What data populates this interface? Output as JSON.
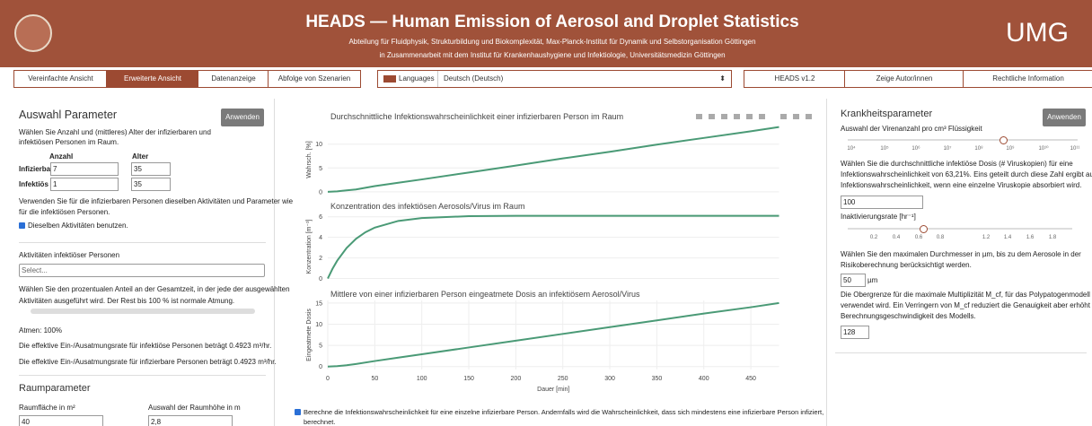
{
  "header": {
    "title": "HEADS — Human Emission of Aerosol and Droplet Statistics",
    "subtitle_1": "Abteilung für Fluidphysik, Strukturbildung und Biokomplexität, Max-Planck-Institut für Dynamik und Selbstorganisation Göttingen",
    "subtitle_2": "in Zusammenarbeit mit dem Institut für Krankenhaushygiene und Infektiologie, Universitätsmedizin Göttingen",
    "logo_text": "UMG"
  },
  "nav": {
    "tabs": [
      "Vereinfachte Ansicht",
      "Erweiterte Ansicht",
      "Datenanzeige",
      "Abfolge von Szenarien"
    ],
    "languages_label": "Languages",
    "language": "Deutsch (Deutsch)",
    "right": [
      "HEADS v1.2",
      "Zeige Autor/innen",
      "Rechtliche Information"
    ]
  },
  "left": {
    "heading": "Auswahl Parameter",
    "apply": "Anwenden",
    "intro": [
      "Wählen Sie Anzahl und (mittleres) Alter der infizierbaren und",
      "infektiösen Personen im Raum."
    ],
    "col_count": "Anzahl",
    "col_age": "Alter",
    "rows": [
      [
        "Infizierbar",
        "7",
        "35"
      ],
      [
        "Infektiös",
        "1",
        "35"
      ]
    ],
    "same_text": [
      "Verwenden Sie für die infizierbaren Personen dieselben Aktivitäten und Parameter wie",
      "für die infektiösen Personen."
    ],
    "same_check": "Dieselben Aktivitäten benutzen.",
    "activities_label": "Aktivitäten infektiöser Personen",
    "select": "Select...",
    "share_text": [
      "Wählen Sie den prozentualen Anteil an der Gesamtzeit, in der jede der ausgewählten",
      "Aktivitäten ausgeführt wird. Der Rest bis 100 % ist normale Atmung."
    ],
    "breathing": "Atmen: 100%",
    "rate_infectious": "Die effektive Ein-/Ausatmungsrate für infektiöse Personen beträgt 0.4923 m³/hr.",
    "rate_susceptible": "Die effektive Ein-/Ausatmungsrate für infizierbare Personen beträgt 0.4923 m³/hr.",
    "room_heading": "Raumparameter",
    "area_label": "Raumfläche in m²",
    "height_label": "Auswahl der Raumhöhe in m",
    "area": "40",
    "height": "2,8"
  },
  "middle": {
    "check_text": [
      "Berechne die Infektionswahrscheinlichkeit für eine einzelne infizierbare Person. Andernfalls wird die Wahrscheinlichkeit, dass sich mindestens eine infizierbare Person infiziert,",
      "berechnet."
    ]
  },
  "right": {
    "heading": "Krankheitsparameter",
    "apply": "Anwenden",
    "virus_label": "Auswahl der Virenanzahl pro cm³ Flüssigkeit",
    "virus_ticks": [
      "10⁴",
      "10⁵",
      "10⁶",
      "10⁷",
      "10⁸",
      "10⁹",
      "10¹⁰",
      "10¹¹"
    ],
    "dose_text": [
      "Wählen Sie die durchschnittliche infektiöse Dosis (# Viruskopien) für eine",
      "Infektionswahrscheinlichkeit von 63,21%. Eins geteilt durch diese Zahl ergibt auch die",
      "Infektionswahrscheinlichkeit, wenn eine einzelne Viruskopie absorbiert wird."
    ],
    "dose": "100",
    "inact_label": "Inaktivierungsrate [hr⁻¹]",
    "inact_ticks": [
      "0.2",
      "0.4",
      "0.6",
      "0.8",
      "1.2",
      "1.4",
      "1.6",
      "1.8"
    ],
    "diam_text": [
      "Wählen Sie den maximalen Durchmesser in µm, bis zu dem Aerosole in der",
      "Risikoberechnung berücksichtigt werden."
    ],
    "diam": "50",
    "diam_unit": "µm",
    "mcf_text": [
      "Die Obergrenze für die maximale Multiplizität M_cf, für das Polypatogenmodell",
      "verwendet wird. Ein Verringern von M_cf reduziert die Genauigkeit aber erhöht die",
      "Berechnungsgeschwindigkeit des Modells."
    ],
    "mcf": "128"
  },
  "chart_data": [
    {
      "type": "line",
      "title": "Durchschnittliche Infektionswahrscheinlichkeit einer infizierbaren Person im Raum",
      "ylabel": "Wahrsch. [%]",
      "color": "#4a9a76",
      "grid": true,
      "x": [
        0,
        10,
        20,
        30,
        50,
        75,
        100,
        150,
        200,
        250,
        300,
        350,
        400,
        450,
        480
      ],
      "values": [
        0,
        0.1,
        0.3,
        0.5,
        1.2,
        1.9,
        2.6,
        4.05,
        5.5,
        7.0,
        8.4,
        9.9,
        11.3,
        12.7,
        13.6
      ],
      "xlim": [
        0,
        480
      ],
      "ylim": [
        -0.4,
        13.9
      ],
      "yticks": [
        0,
        5,
        10
      ]
    },
    {
      "type": "line",
      "title": "Konzentration des infektiösen Aerosols/Virus im Raum",
      "ylabel": "Konzentration [m⁻³]",
      "color": "#4a9a76",
      "grid": true,
      "x": [
        0,
        5,
        10,
        20,
        30,
        40,
        50,
        75,
        100,
        150,
        200,
        250,
        300,
        350,
        400,
        450,
        480
      ],
      "values": [
        0,
        0.94,
        1.73,
        2.97,
        3.86,
        4.5,
        4.95,
        5.6,
        5.88,
        6.06,
        6.1,
        6.1,
        6.1,
        6.1,
        6.1,
        6.1,
        6.1
      ],
      "xlim": [
        0,
        480
      ],
      "ylim": [
        -0.3,
        6.5
      ],
      "yticks": [
        0,
        2,
        4,
        6
      ]
    },
    {
      "type": "line",
      "title": "Mittlere von einer infizierbaren Person eingeatmete Dosis an infektiösem Aerosol/Virus",
      "ylabel": "Eingeatmete Dosis",
      "xlabel": "Dauer [min]",
      "color": "#4a9a76",
      "grid": true,
      "x": [
        0,
        10,
        20,
        30,
        50,
        75,
        100,
        150,
        200,
        250,
        300,
        350,
        400,
        450,
        480
      ],
      "values": [
        0,
        0.1,
        0.3,
        0.6,
        1.3,
        2.1,
        2.9,
        4.5,
        6.1,
        7.7,
        9.3,
        10.9,
        12.5,
        14.0,
        15.0
      ],
      "xlim": [
        0,
        480
      ],
      "ylim": [
        -0.7,
        15.6
      ],
      "yticks": [
        0,
        5,
        10,
        15
      ],
      "xticks": [
        0,
        50,
        100,
        150,
        200,
        250,
        300,
        350,
        400,
        450
      ]
    }
  ]
}
